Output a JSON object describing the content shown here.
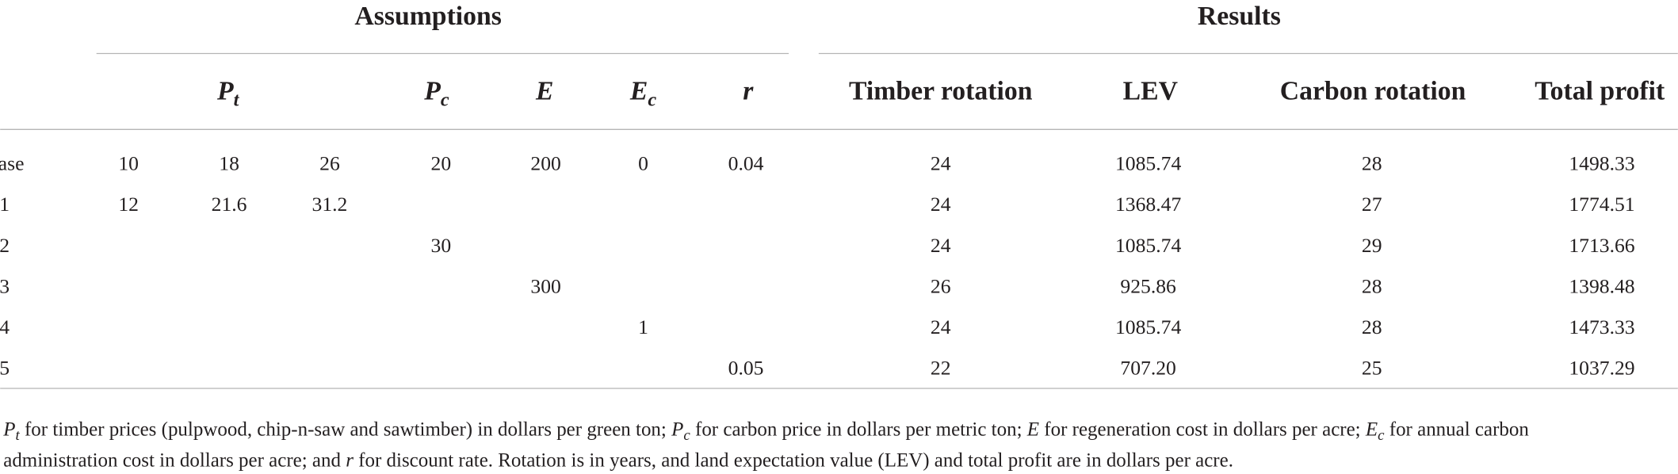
{
  "table": {
    "groups": [
      "Assumptions",
      "Results"
    ],
    "columns": [
      {
        "symbol": "P",
        "sub": "t"
      },
      {
        "symbol": "P",
        "sub": "c"
      },
      {
        "symbol": "E"
      },
      {
        "symbol": "E",
        "sub": "c"
      },
      {
        "symbol": "r"
      },
      "Timber rotation",
      "LEV",
      "Carbon rotation",
      "Total profit"
    ],
    "rows": [
      [
        "Base",
        "10",
        "18",
        "26",
        "20",
        "200",
        "0",
        "0.04",
        "24",
        "1085.74",
        "28",
        "1498.33"
      ],
      [
        "1",
        "12",
        "21.6",
        "31.2",
        null,
        null,
        null,
        null,
        "24",
        "1368.47",
        "27",
        "1774.51"
      ],
      [
        "2",
        null,
        null,
        null,
        "30",
        null,
        null,
        null,
        "24",
        "1085.74",
        "29",
        "1713.66"
      ],
      [
        "3",
        null,
        null,
        null,
        null,
        "300",
        null,
        null,
        "26",
        "925.86",
        "28",
        "1398.48"
      ],
      [
        "4",
        null,
        null,
        null,
        null,
        null,
        "1",
        null,
        "24",
        "1085.74",
        "28",
        "1473.33"
      ],
      [
        "5",
        null,
        null,
        null,
        null,
        null,
        null,
        "0.05",
        "22",
        "707.20",
        "25",
        "1037.29"
      ]
    ],
    "footnote": [
      "P",
      "t",
      " for timber prices (pulpwood, chip-n-saw and sawtimber) in dollars per green ton; ",
      "P",
      "c",
      " for carbon price in dollars per metric ton; ",
      "E",
      " for regeneration cost in dollars per acre; ",
      "E",
      "c",
      " for annual carbon",
      "administration cost in dollars per acre; and ",
      "r",
      " for discount rate. Rotation is in years, and land expectation value (LEV) and total profit are in dollars per acre."
    ]
  }
}
